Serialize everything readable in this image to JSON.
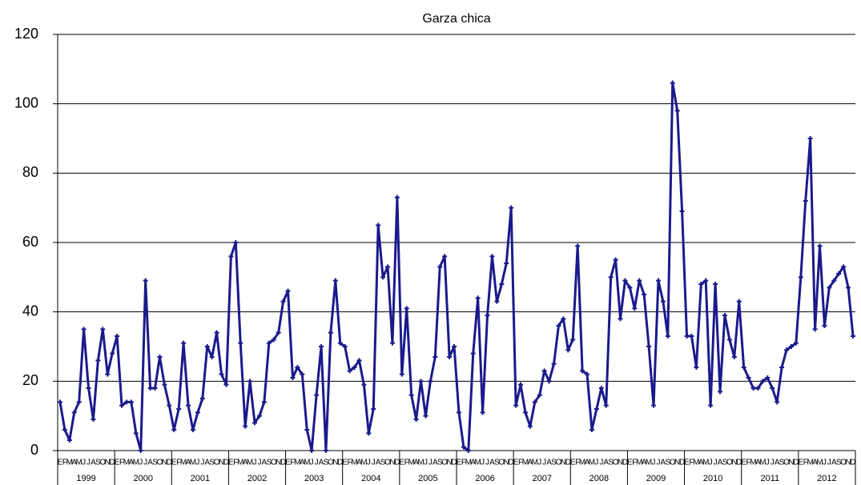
{
  "chart_data": {
    "type": "line",
    "title": "Garza chica",
    "categories": [
      "E",
      "F",
      "M",
      "A",
      "M",
      "J",
      "J",
      "A",
      "S",
      "O",
      "N",
      "D",
      "E",
      "F",
      "M",
      "A",
      "M",
      "J",
      "J",
      "A",
      "S",
      "O",
      "N",
      "D",
      "E",
      "F",
      "M",
      "A",
      "M",
      "J",
      "J",
      "A",
      "S",
      "O",
      "N",
      "D",
      "E",
      "F",
      "M",
      "A",
      "M",
      "J",
      "J",
      "A",
      "S",
      "O",
      "N",
      "D",
      "E",
      "F",
      "M",
      "A",
      "M",
      "J",
      "J",
      "A",
      "S",
      "O",
      "N",
      "D",
      "E",
      "F",
      "M",
      "A",
      "M",
      "J",
      "J",
      "A",
      "S",
      "O",
      "N",
      "D",
      "E",
      "F",
      "M",
      "A",
      "M",
      "J",
      "J",
      "A",
      "S",
      "O",
      "N",
      "D",
      "E",
      "F",
      "M",
      "A",
      "M",
      "J",
      "J",
      "A",
      "S",
      "O",
      "N",
      "D",
      "E",
      "F",
      "M",
      "A",
      "M",
      "J",
      "J",
      "A",
      "S",
      "O",
      "N",
      "D",
      "E",
      "F",
      "M",
      "A",
      "M",
      "J",
      "J",
      "A",
      "S",
      "O",
      "N",
      "D",
      "E",
      "F",
      "M",
      "A",
      "M",
      "J",
      "J",
      "A",
      "S",
      "O",
      "N",
      "D",
      "E",
      "F",
      "M",
      "A",
      "M",
      "J",
      "J",
      "A",
      "S",
      "O",
      "N",
      "D",
      "E",
      "F",
      "M",
      "A",
      "M",
      "J",
      "J",
      "A",
      "S",
      "O",
      "N",
      "D",
      "E",
      "F",
      "M",
      "A",
      "M",
      "J",
      "J",
      "A",
      "S",
      "O",
      "N",
      "D"
    ],
    "year_labels": [
      "1999",
      "2000",
      "2001",
      "2002",
      "2003",
      "2004",
      "2005",
      "2006",
      "2007",
      "2008",
      "2009",
      "2010",
      "2011",
      "2012"
    ],
    "values": [
      14,
      6,
      3,
      11,
      14,
      35,
      18,
      9,
      26,
      35,
      22,
      28,
      33,
      13,
      14,
      14,
      5,
      0,
      49,
      18,
      18,
      27,
      19,
      13,
      6,
      12,
      31,
      13,
      6,
      11,
      15,
      30,
      27,
      34,
      22,
      19,
      56,
      60,
      31,
      7,
      20,
      8,
      10,
      14,
      31,
      32,
      34,
      43,
      46,
      21,
      24,
      22,
      6,
      0,
      16,
      30,
      0,
      34,
      49,
      31,
      30,
      23,
      24,
      26,
      19,
      5,
      12,
      65,
      50,
      53,
      31,
      73,
      22,
      41,
      16,
      9,
      20,
      10,
      20,
      27,
      53,
      56,
      27,
      30,
      11,
      1,
      0,
      28,
      44,
      11,
      39,
      56,
      43,
      48,
      54,
      70,
      13,
      19,
      11,
      7,
      14,
      16,
      23,
      20,
      25,
      36,
      38,
      29,
      32,
      59,
      23,
      22,
      6,
      12,
      18,
      13,
      50,
      55,
      38,
      49,
      47,
      41,
      49,
      45,
      30,
      13,
      49,
      43,
      33,
      106,
      98,
      69,
      33,
      33,
      24,
      48,
      49,
      13,
      48,
      17,
      39,
      32,
      27,
      43,
      24,
      21,
      18,
      18,
      20,
      21,
      18,
      14,
      24,
      29,
      30,
      31,
      50,
      72,
      90,
      35,
      59,
      36,
      47,
      49,
      51,
      53,
      47,
      33
    ],
    "color": "#1a1a8c",
    "ylim": [
      0,
      120
    ],
    "yticks": [
      0,
      20,
      40,
      60,
      80,
      100,
      120
    ],
    "grid": true
  }
}
